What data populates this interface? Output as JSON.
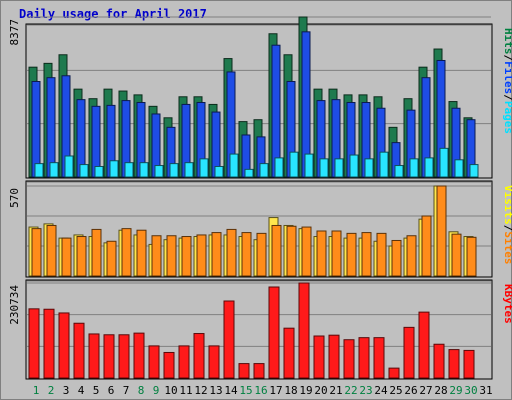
{
  "chart_data": {
    "type": "bar",
    "title": "Daily usage for April 2017",
    "days": [
      "1",
      "2",
      "3",
      "4",
      "5",
      "6",
      "7",
      "8",
      "9",
      "10",
      "11",
      "12",
      "13",
      "14",
      "15",
      "16",
      "17",
      "18",
      "19",
      "20",
      "21",
      "22",
      "23",
      "24",
      "25",
      "26",
      "27",
      "28",
      "29",
      "30",
      "31"
    ],
    "weekend_days": [
      "1",
      "2",
      "8",
      "9",
      "15",
      "16",
      "22",
      "23",
      "29",
      "30"
    ],
    "panels": [
      {
        "id": "hits",
        "max_label": "8377",
        "ymax": 8377,
        "right_labels": [
          {
            "text": "Hits",
            "color": "#008040"
          },
          {
            "text": "/",
            "color": "#000000"
          },
          {
            "text": "Files",
            "color": "#0040ff"
          },
          {
            "text": "/",
            "color": "#000000"
          },
          {
            "text": "Pages",
            "color": "#00e0ff"
          }
        ],
        "series": [
          {
            "name": "Hits",
            "color": "#1e7a4e",
            "values": [
              5750,
              5950,
              6400,
              4600,
              4100,
              4600,
              4500,
              4300,
              3700,
              3100,
              4200,
              4200,
              3800,
              6200,
              2900,
              3000,
              7500,
              6400,
              8377,
              4600,
              4600,
              4300,
              4300,
              4200,
              2600,
              4100,
              5750,
              6700,
              3950,
              3100,
              null
            ]
          },
          {
            "name": "Files",
            "color": "#1e4de6",
            "values": [
              5000,
              5200,
              5300,
              4050,
              3700,
              3750,
              4000,
              3900,
              3300,
              2600,
              3800,
              3900,
              3400,
              5500,
              2200,
              2100,
              6900,
              5000,
              7600,
              4000,
              4050,
              3900,
              3900,
              3600,
              1800,
              3500,
              5200,
              6100,
              3600,
              3000,
              null
            ]
          },
          {
            "name": "Pages",
            "color": "#28e6ff",
            "values": [
              700,
              750,
              1100,
              650,
              550,
              850,
              750,
              750,
              600,
              700,
              750,
              950,
              550,
              1200,
              400,
              700,
              1000,
              1300,
              1200,
              950,
              950,
              1150,
              950,
              1300,
              600,
              950,
              1000,
              1500,
              900,
              650,
              null
            ]
          }
        ]
      },
      {
        "id": "visits",
        "max_label": "570",
        "ymax": 570,
        "right_labels": [
          {
            "text": "Visits",
            "color": "#ffff00"
          },
          {
            "text": "/",
            "color": "#000000"
          },
          {
            "text": "Sites",
            "color": "#ff8000"
          }
        ],
        "series": [
          {
            "name": "Visits",
            "color": "#ffe64d",
            "values": [
              310,
              330,
              240,
              260,
              250,
              210,
              290,
              260,
              200,
              230,
              240,
              250,
              260,
              260,
              250,
              230,
              370,
              320,
              300,
              250,
              250,
              240,
              240,
              220,
              190,
              240,
              360,
              570,
              280,
              250,
              null
            ]
          },
          {
            "name": "Sites",
            "color": "#ff8c1a",
            "values": [
              300,
              320,
              240,
              250,
              295,
              220,
              300,
              290,
              255,
              255,
              250,
              260,
              275,
              295,
              275,
              270,
              320,
              315,
              310,
              285,
              285,
              270,
              275,
              270,
              225,
              255,
              380,
              570,
              265,
              245,
              null
            ]
          }
        ]
      },
      {
        "id": "kbytes",
        "max_label": "230734",
        "ymax": 230734,
        "right_labels": [
          {
            "text": "KBytes",
            "color": "#ff0000"
          }
        ],
        "series": [
          {
            "name": "KBytes",
            "color": "#ff1a1a",
            "values": [
              168000,
              167000,
              158000,
              133000,
              107000,
              105000,
              105000,
              109000,
              78000,
              62000,
              78000,
              108000,
              78000,
              187000,
              35000,
              35000,
              221000,
              121000,
              230734,
              102000,
              104000,
              93000,
              98000,
              98000,
              24000,
              123000,
              160000,
              82000,
              69000,
              67000,
              null
            ]
          }
        ]
      }
    ]
  }
}
